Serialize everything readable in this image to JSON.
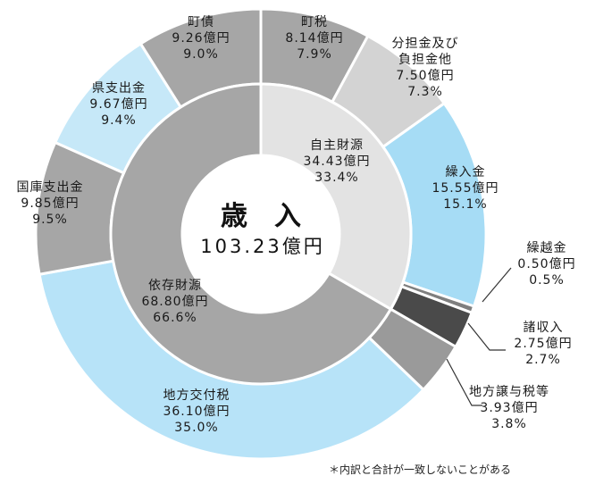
{
  "chart_data": {
    "type": "pie",
    "center_title": "歳　入",
    "center_total": "103.23億円",
    "note": "＊内訳と合計が一致しないことがある",
    "inner": [
      {
        "name": "自主財源",
        "amount": "34.43億円",
        "pct": "33.4%",
        "value": 34.43,
        "color": "#e3e3e3"
      },
      {
        "name": "依存財源",
        "amount": "68.80億円",
        "pct": "66.6%",
        "value": 68.8,
        "color": "#a6a6a6"
      }
    ],
    "outer": [
      {
        "name": "町税",
        "amount": "8.14億円",
        "pct": "7.9%",
        "value": 8.14,
        "color": "#a6a6a6"
      },
      {
        "name": "分担金及び負担金他",
        "name_lines": [
          "分担金及び",
          "負担金他"
        ],
        "amount": "7.50億円",
        "pct": "7.3%",
        "value": 7.5,
        "color": "#d3d3d3"
      },
      {
        "name": "繰入金",
        "amount": "15.55億円",
        "pct": "15.1%",
        "value": 15.55,
        "color": "#a6dcf5"
      },
      {
        "name": "繰越金",
        "amount": "0.50億円",
        "pct": "0.5%",
        "value": 0.5,
        "color": "#7f7f7f"
      },
      {
        "name": "諸収入",
        "amount": "2.75億円",
        "pct": "2.7%",
        "value": 2.75,
        "color": "#4a4a4a"
      },
      {
        "name": "地方譲与税等",
        "amount": "3.93億円",
        "pct": "3.8%",
        "value": 3.93,
        "color": "#9a9a9a"
      },
      {
        "name": "地方交付税",
        "amount": "36.10億円",
        "pct": "35.0%",
        "value": 36.1,
        "color": "#b7e3f8"
      },
      {
        "name": "国庫支出金",
        "amount": "9.85億円",
        "pct": "9.5%",
        "value": 9.85,
        "color": "#a6a6a6"
      },
      {
        "name": "県支出金",
        "amount": "9.67億円",
        "pct": "9.4%",
        "value": 9.67,
        "color": "#c6e8f8"
      },
      {
        "name": "町債",
        "amount": "9.26億円",
        "pct": "9.0%",
        "value": 9.26,
        "color": "#a6a6a6"
      }
    ]
  }
}
